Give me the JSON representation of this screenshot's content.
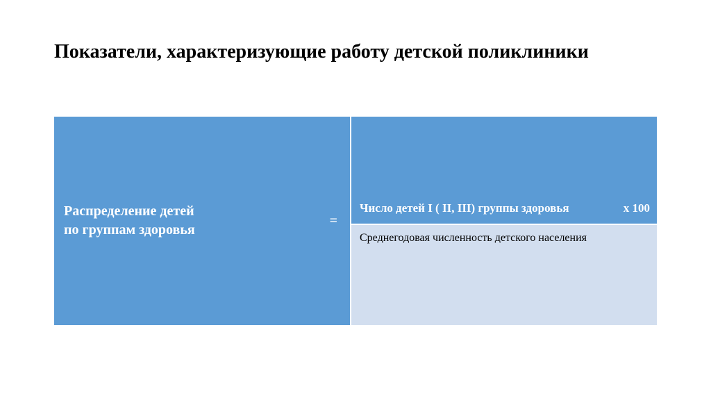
{
  "title": "Показатели, характеризующие работу детской поликлиники",
  "title_fontsize": 28,
  "title_color": "#000000",
  "table": {
    "left": {
      "line1": "Распределение детей",
      "line2": " по группам здоровья",
      "equals": "=",
      "bg_color": "#5b9bd5",
      "text_color": "#ffffff",
      "fontsize": 20
    },
    "right_top": {
      "main": "Число детей I  ( II,  III) группы  здоровья",
      "mult": "х 100",
      "bg_color": "#5b9bd5",
      "text_color": "#ffffff",
      "fontsize": 17
    },
    "right_bottom": {
      "text": "Среднегодовая численность детского населения",
      "bg_color": "#d2deef",
      "text_color": "#000000",
      "fontsize": 16
    },
    "border_color": "#ffffff"
  }
}
